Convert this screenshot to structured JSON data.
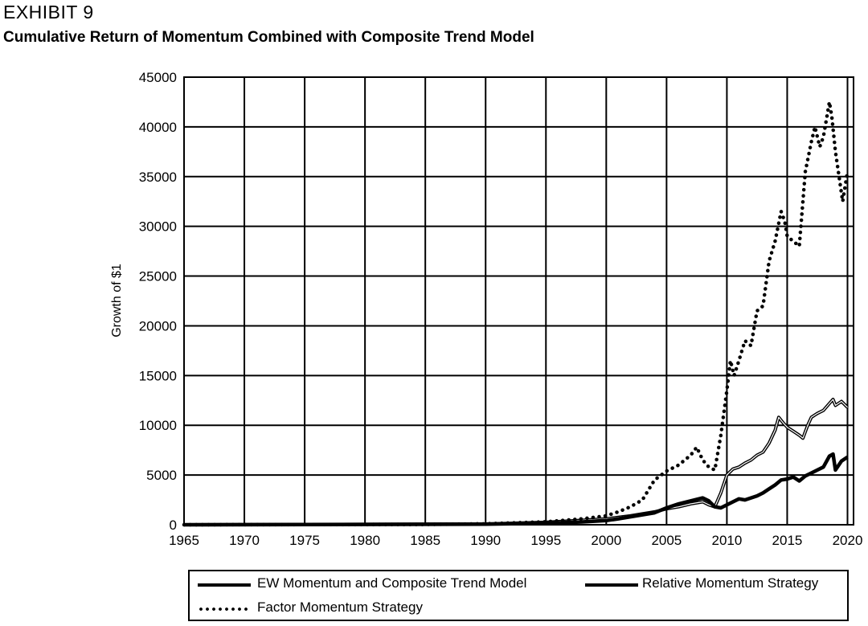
{
  "header": {
    "exhibit": "EXHIBIT 9",
    "title": "Cumulative Return of Momentum Combined with Composite Trend Model"
  },
  "chart_data": {
    "type": "line",
    "title": "Cumulative Return of Momentum Combined with Composite Trend Model",
    "xlabel": "",
    "ylabel": "Growth of $1",
    "xlim": [
      1965,
      2020.5
    ],
    "ylim": [
      0,
      45000
    ],
    "xticks": [
      1965,
      1970,
      1975,
      1980,
      1985,
      1990,
      1995,
      2000,
      2005,
      2010,
      2015,
      2020
    ],
    "yticks": [
      0,
      5000,
      10000,
      15000,
      20000,
      25000,
      30000,
      35000,
      40000,
      45000
    ],
    "grid": true,
    "legend_position": "bottom",
    "series": [
      {
        "name": "EW Momentum and Composite Trend Model",
        "style": "solid-double",
        "x": [
          1965,
          1990,
          1995,
          1998,
          2000,
          2001,
          2002,
          2003,
          2004,
          2005,
          2006,
          2007,
          2008,
          2008.5,
          2009,
          2009.5,
          2010,
          2010.5,
          2011,
          2011.5,
          2012,
          2012.5,
          2013,
          2013.5,
          2014,
          2014.3,
          2014.7,
          2015,
          2015.5,
          2016,
          2016.3,
          2016.7,
          2017,
          2017.5,
          2018,
          2018.5,
          2018.8,
          2019,
          2019.5,
          2020
        ],
        "y": [
          0,
          80,
          250,
          450,
          600,
          750,
          900,
          1100,
          1300,
          1600,
          1800,
          2100,
          2300,
          2000,
          1800,
          3200,
          5000,
          5600,
          5800,
          6200,
          6500,
          7000,
          7300,
          8200,
          9500,
          10800,
          10200,
          9800,
          9400,
          9000,
          8700,
          10000,
          10800,
          11200,
          11500,
          12200,
          12600,
          12000,
          12400,
          11800
        ]
      },
      {
        "name": "Relative Momentum Strategy",
        "style": "solid-thick",
        "x": [
          1965,
          1990,
          1995,
          1998,
          2000,
          2001,
          2002,
          2003,
          2004,
          2005,
          2006,
          2007,
          2008,
          2008.5,
          2009,
          2009.5,
          2010,
          2010.5,
          2011,
          2011.5,
          2012,
          2012.5,
          2013,
          2013.5,
          2014,
          2014.5,
          2015,
          2015.5,
          2016,
          2016.5,
          2017,
          2017.5,
          2018,
          2018.5,
          2018.8,
          2019,
          2019.5,
          2020
        ],
        "y": [
          0,
          60,
          150,
          280,
          420,
          600,
          800,
          1000,
          1200,
          1700,
          2100,
          2400,
          2700,
          2400,
          1800,
          1700,
          2000,
          2300,
          2600,
          2500,
          2700,
          2900,
          3200,
          3600,
          4000,
          4500,
          4600,
          4800,
          4400,
          4900,
          5200,
          5500,
          5800,
          6900,
          7100,
          5500,
          6400,
          6800
        ]
      },
      {
        "name": "Factor Momentum Strategy",
        "style": "dotted",
        "x": [
          1965,
          1985,
          1990,
          1995,
          1998,
          2000,
          2001,
          2002,
          2003,
          2004,
          2005,
          2006,
          2007,
          2007.5,
          2008,
          2008.5,
          2009,
          2009.5,
          2010,
          2010.3,
          2010.6,
          2011,
          2011.5,
          2012,
          2012.5,
          2013,
          2013.5,
          2014,
          2014.5,
          2014.8,
          2015,
          2015.5,
          2016,
          2016.5,
          2017,
          2017.3,
          2017.7,
          2018,
          2018.5,
          2018.7,
          2019,
          2019.3,
          2019.6,
          2020
        ],
        "y": [
          0,
          30,
          100,
          300,
          600,
          900,
          1300,
          1800,
          2500,
          4500,
          5400,
          6000,
          7000,
          7800,
          6500,
          5800,
          5500,
          9000,
          13500,
          16500,
          15000,
          16500,
          18500,
          18000,
          21500,
          22000,
          26500,
          28500,
          31500,
          30500,
          29000,
          28500,
          28000,
          35500,
          38500,
          40000,
          38000,
          39000,
          42500,
          41000,
          37500,
          35000,
          32500,
          35500
        ]
      }
    ]
  }
}
